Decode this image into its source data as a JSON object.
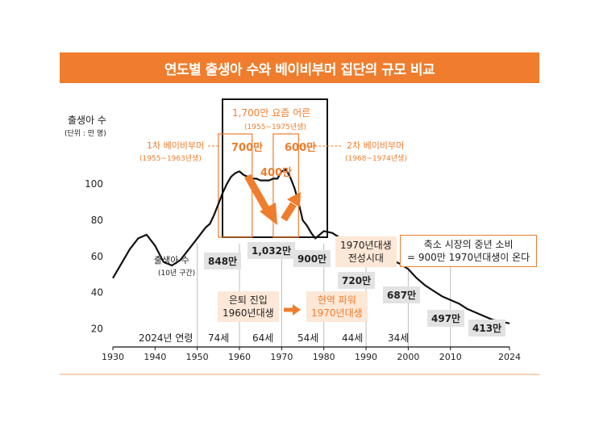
{
  "title": "연도별 출생아 수와 베이비부머 집단의 규모 비교",
  "colors": {
    "accent": "#ef7d2d",
    "line": "#111111",
    "peach": "#fde7d6",
    "gray": "#e2e2e2"
  },
  "chart_data": {
    "type": "line",
    "title": "연도별 출생아 수와 베이비부머 집단의 규모 비교",
    "ylabel": "출생아 수",
    "yunit": "(단위 : 만 명)",
    "ylim": [
      10,
      125
    ],
    "xlim": [
      1930,
      2024
    ],
    "yticks": [
      20,
      40,
      60,
      80,
      100
    ],
    "xticks": [
      1930,
      1940,
      1950,
      1960,
      1970,
      1980,
      1990,
      2000,
      2010,
      2024
    ],
    "series": [
      {
        "name": "출생아 수",
        "x": [
          1930,
          1932,
          1934,
          1936,
          1938,
          1940,
          1942,
          1944,
          1946,
          1948,
          1950,
          1951,
          1952,
          1953,
          1954,
          1955,
          1956,
          1957,
          1958,
          1959,
          1960,
          1961,
          1962,
          1963,
          1964,
          1965,
          1966,
          1967,
          1968,
          1969,
          1970,
          1971,
          1972,
          1973,
          1974,
          1975,
          1976,
          1977,
          1978,
          1979,
          1980,
          1982,
          1984,
          1986,
          1988,
          1990,
          1992,
          1994,
          1996,
          1998,
          2000,
          2002,
          2004,
          2006,
          2008,
          2010,
          2012,
          2014,
          2016,
          2018,
          2020,
          2022,
          2024
        ],
        "y": [
          48,
          56,
          64,
          70,
          72,
          66,
          57,
          55,
          58,
          64,
          70,
          73,
          76,
          78,
          83,
          89,
          95,
          100,
          104,
          106,
          107,
          105,
          104,
          103,
          103,
          102,
          102,
          102,
          103,
          103,
          107,
          108,
          104,
          98,
          90,
          80,
          77,
          73,
          70,
          72,
          74,
          73,
          70,
          68,
          66,
          64,
          62,
          60,
          58,
          56,
          53,
          48,
          44,
          41,
          38,
          36,
          34,
          31,
          29,
          27,
          25,
          24,
          23
        ]
      }
    ],
    "annotations": {
      "peak_box_title": "1,700만 요즘 어른",
      "peak_box_range": "(1955~1975년생)",
      "gen1_title": "1차 베이비부머",
      "gen1_range": "(1955~1963년생)",
      "gen2_title": "2차 베이비부머",
      "gen2_range": "(1968~1974년생)",
      "gen1_value": "700만",
      "gen2_value": "600만",
      "gap_value": "400만"
    },
    "decade_label": "출생아 수",
    "decade_sub": "(10년 구간)",
    "decade_values": [
      "848만",
      "1,032만",
      "900만",
      "720만",
      "687만",
      "497만",
      "413만"
    ],
    "age_title": "2024년 연령",
    "ages": [
      "74세",
      "64세",
      "54세",
      "44세",
      "34세"
    ]
  },
  "callouts": {
    "retire_line1": "은퇴 진입",
    "retire_line2": "1960년대생",
    "power_line1": "현역 파워",
    "power_line2": "1970년대생",
    "era_line1": "1970년대생",
    "era_line2": "전성시대",
    "shrink_line1": "축소 시장의 중년 소비",
    "shrink_line2": "= 900만 1970년대생이 온다"
  }
}
